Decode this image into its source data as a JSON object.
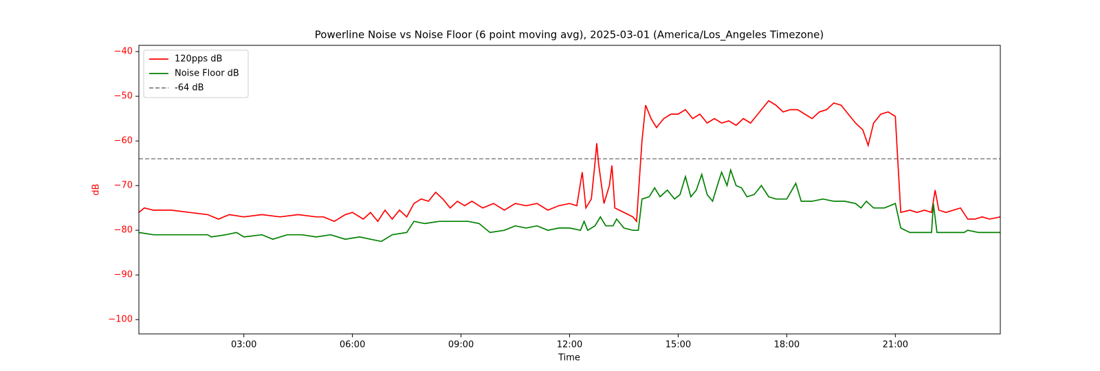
{
  "chart_data": {
    "type": "line",
    "title": "Powerline Noise vs Noise Floor (6 point moving avg), 2025-03-01 (America/Los_Angeles Timezone)",
    "xlabel": "Time",
    "ylabel": "dB",
    "ylabel_color": "red",
    "legend": "upper left",
    "xlim": [
      0.1,
      23.9
    ],
    "ylim": [
      -103.2,
      -38.6
    ],
    "xticks": [
      {
        "value": 3,
        "label": "03:00"
      },
      {
        "value": 6,
        "label": "06:00"
      },
      {
        "value": 9,
        "label": "09:00"
      },
      {
        "value": 12,
        "label": "12:00"
      },
      {
        "value": 15,
        "label": "15:00"
      },
      {
        "value": 18,
        "label": "18:00"
      },
      {
        "value": 21,
        "label": "21:00"
      }
    ],
    "yticks": [
      {
        "value": -100,
        "label": "−100"
      },
      {
        "value": -90,
        "label": "−90"
      },
      {
        "value": -80,
        "label": "−80"
      },
      {
        "value": -70,
        "label": "−70"
      },
      {
        "value": -60,
        "label": "−60"
      },
      {
        "value": -50,
        "label": "−50"
      },
      {
        "value": -40,
        "label": "−40"
      }
    ],
    "series": [
      {
        "name": "120pps dB",
        "color": "red",
        "x": [
          0.1,
          0.25,
          0.5,
          1,
          1.5,
          2,
          2.3,
          2.6,
          3,
          3.5,
          4,
          4.5,
          5,
          5.2,
          5.5,
          5.8,
          6,
          6.3,
          6.5,
          6.7,
          6.9,
          7.1,
          7.3,
          7.5,
          7.7,
          7.9,
          8.1,
          8.3,
          8.5,
          8.7,
          8.9,
          9.1,
          9.3,
          9.6,
          9.9,
          10.2,
          10.5,
          10.8,
          11.1,
          11.4,
          11.7,
          12,
          12.2,
          12.35,
          12.45,
          12.6,
          12.7,
          12.75,
          12.8,
          12.95,
          13.1,
          13.17,
          13.25,
          13.5,
          13.75,
          13.85,
          14,
          14.1,
          14.25,
          14.4,
          14.6,
          14.8,
          15,
          15.2,
          15.4,
          15.6,
          15.8,
          16,
          16.2,
          16.4,
          16.6,
          16.8,
          17,
          17.2,
          17.4,
          17.5,
          17.7,
          17.9,
          18.1,
          18.3,
          18.5,
          18.7,
          18.9,
          19.1,
          19.3,
          19.5,
          19.7,
          19.9,
          20.1,
          20.25,
          20.4,
          20.6,
          20.8,
          21,
          21.05,
          21.15,
          21.4,
          21.6,
          21.8,
          22,
          22.1,
          22.2,
          22.4,
          22.6,
          22.8,
          23,
          23.2,
          23.4,
          23.6,
          23.9
        ],
        "values": [
          -76,
          -75,
          -75.5,
          -75.5,
          -76,
          -76.5,
          -77.5,
          -76.5,
          -77,
          -76.5,
          -77,
          -76.5,
          -77,
          -77,
          -78,
          -76.5,
          -76,
          -77.5,
          -76,
          -78,
          -75.5,
          -77.5,
          -75.5,
          -77,
          -74,
          -73,
          -73.5,
          -71.5,
          -73,
          -75,
          -73.5,
          -74.5,
          -73.5,
          -75,
          -74,
          -75.5,
          -74,
          -74.5,
          -74,
          -75.5,
          -74.5,
          -74,
          -74.5,
          -67,
          -75,
          -73,
          -65,
          -60.5,
          -65,
          -74,
          -70,
          -65.5,
          -75,
          -76,
          -77,
          -78,
          -60,
          -52,
          -55,
          -57,
          -55,
          -54,
          -54,
          -53,
          -55,
          -54,
          -56,
          -55,
          -56,
          -55.5,
          -56.5,
          -55,
          -56,
          -54,
          -52,
          -51,
          -52,
          -53.5,
          -53,
          -53,
          -54,
          -55,
          -53.5,
          -53,
          -51.5,
          -52,
          -54,
          -56,
          -57.5,
          -61,
          -56,
          -54,
          -53.5,
          -54.5,
          -62,
          -76,
          -75.5,
          -76,
          -75.5,
          -76,
          -71,
          -75.5,
          -76,
          -75.5,
          -75,
          -77.5,
          -77.5,
          -77,
          -77.5,
          -77
        ]
      },
      {
        "name": "Noise Floor dB",
        "color": "green",
        "x": [
          0.1,
          0.5,
          1,
          1.5,
          2,
          2.1,
          2.5,
          2.8,
          3,
          3.5,
          3.8,
          4.2,
          4.6,
          5,
          5.4,
          5.8,
          6.2,
          6.5,
          6.8,
          7.1,
          7.5,
          7.7,
          8,
          8.4,
          8.8,
          9.2,
          9.5,
          9.8,
          10.2,
          10.5,
          10.8,
          11.1,
          11.4,
          11.7,
          12,
          12.3,
          12.4,
          12.5,
          12.7,
          12.85,
          13,
          13.2,
          13.3,
          13.5,
          13.75,
          13.9,
          14,
          14.2,
          14.35,
          14.5,
          14.7,
          14.9,
          15.05,
          15.2,
          15.35,
          15.5,
          15.65,
          15.8,
          15.95,
          16.1,
          16.2,
          16.35,
          16.45,
          16.6,
          16.75,
          16.9,
          17.1,
          17.3,
          17.5,
          17.7,
          18,
          18.25,
          18.4,
          18.7,
          19,
          19.3,
          19.6,
          19.9,
          20.05,
          20.2,
          20.4,
          20.7,
          21,
          21.15,
          21.4,
          21.7,
          22,
          22.05,
          22.15,
          22.5,
          22.9,
          23,
          23.3,
          23.9
        ],
        "values": [
          -80.5,
          -81,
          -81,
          -81,
          -81,
          -81.5,
          -81,
          -80.5,
          -81.5,
          -81,
          -82,
          -81,
          -81,
          -81.5,
          -81,
          -82,
          -81.5,
          -82,
          -82.5,
          -81,
          -80.5,
          -78,
          -78.5,
          -78,
          -78,
          -78,
          -78.5,
          -80.5,
          -80,
          -79,
          -79.5,
          -79,
          -80,
          -79.5,
          -79.5,
          -80,
          -78,
          -80,
          -79,
          -77,
          -79,
          -79,
          -77.5,
          -79.5,
          -80,
          -80,
          -73,
          -72.5,
          -70.5,
          -72.5,
          -71,
          -73,
          -72,
          -68,
          -72.5,
          -71,
          -67.5,
          -72,
          -73.5,
          -69.5,
          -67,
          -70,
          -66.5,
          -70,
          -70.5,
          -72.5,
          -72,
          -70,
          -72.5,
          -73,
          -73,
          -69.5,
          -73.5,
          -73.5,
          -73,
          -73.5,
          -73.5,
          -74,
          -75,
          -73.5,
          -75,
          -75,
          -74,
          -79.5,
          -80.5,
          -80.5,
          -80.5,
          -74,
          -80.5,
          -80.5,
          -80.5,
          -80,
          -80.5,
          -80.5
        ]
      }
    ],
    "reference_lines": [
      {
        "name": "-64 dB",
        "value": -64,
        "color": "gray",
        "dashed": true
      }
    ]
  }
}
